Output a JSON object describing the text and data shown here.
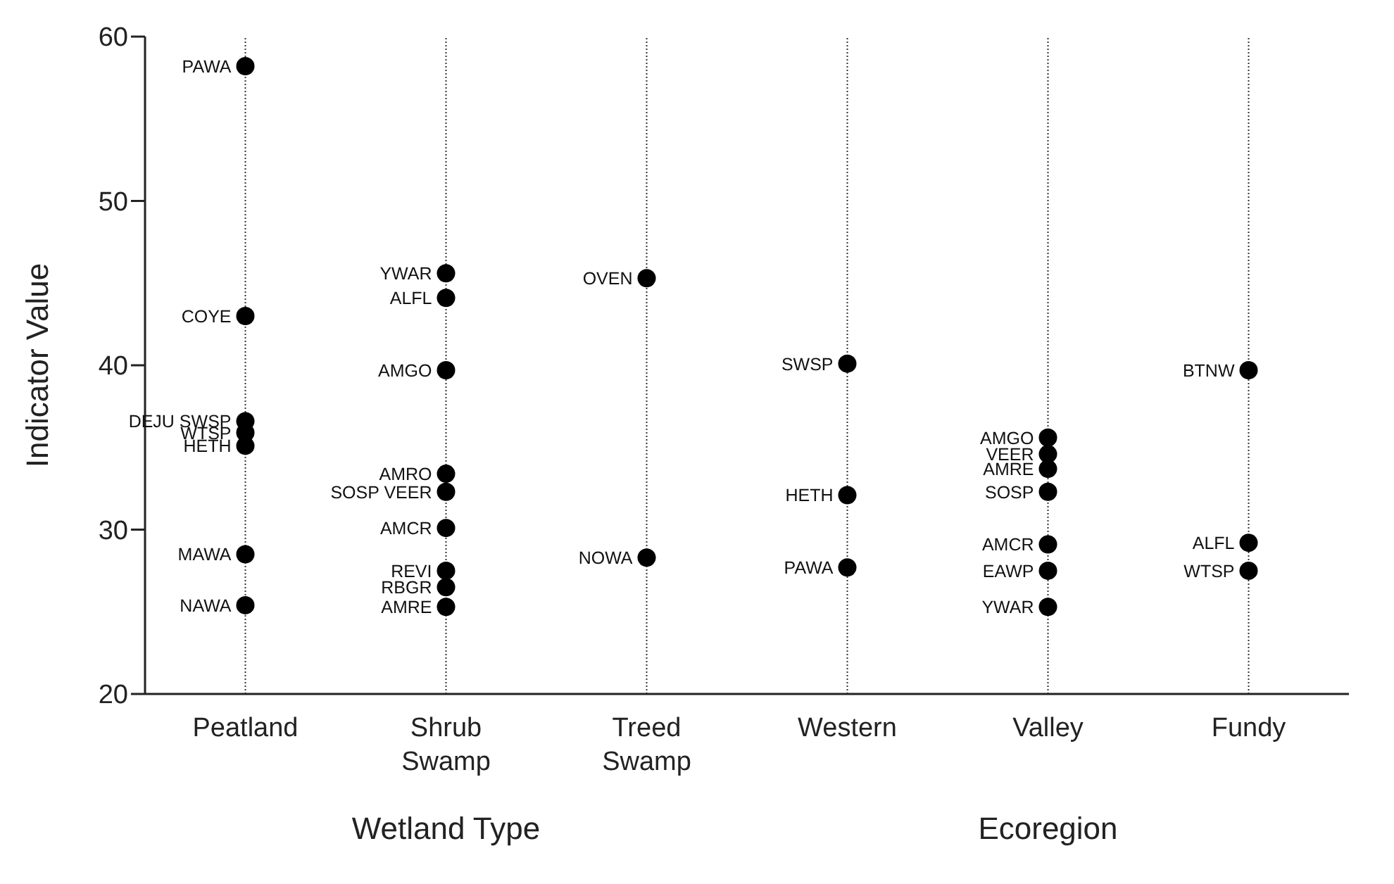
{
  "chart_data": {
    "type": "scatter",
    "ylabel": "Indicator Value",
    "categories": [
      "Peatland",
      "Shrub Swamp",
      "Treed Swamp",
      "Western",
      "Valley",
      "Fundy"
    ],
    "ylim": [
      20,
      60
    ],
    "yticks": [
      20,
      30,
      40,
      50,
      60
    ],
    "grid": "x",
    "marker": "circle",
    "legend": false,
    "series": [
      {
        "color": "#000000",
        "x": [
          "Peatland",
          "Peatland",
          "Peatland",
          "Peatland",
          "Peatland",
          "Peatland",
          "Peatland",
          "Shrub Swamp",
          "Shrub Swamp",
          "Shrub Swamp",
          "Shrub Swamp",
          "Shrub Swamp",
          "Shrub Swamp",
          "Shrub Swamp",
          "Shrub Swamp",
          "Shrub Swamp",
          "Treed Swamp",
          "Treed Swamp",
          "Western",
          "Western",
          "Western",
          "Valley",
          "Valley",
          "Valley",
          "Valley",
          "Valley",
          "Valley",
          "Valley",
          "Fundy",
          "Fundy",
          "Fundy"
        ],
        "values": [
          58.2,
          43.0,
          36.6,
          35.9,
          35.1,
          28.5,
          25.4,
          45.6,
          44.1,
          39.7,
          33.4,
          32.3,
          30.1,
          27.5,
          26.5,
          25.3,
          45.3,
          28.3,
          40.1,
          32.1,
          27.7,
          35.6,
          34.6,
          33.7,
          32.3,
          29.1,
          27.5,
          25.3,
          39.7,
          29.2,
          27.5
        ]
      }
    ],
    "annotations": [
      {
        "text": "PAWA",
        "x": "Peatland",
        "y": 58.2
      },
      {
        "text": "COYE",
        "x": "Peatland",
        "y": 43.0
      },
      {
        "text": "DEJU SWSP",
        "x": "Peatland",
        "y": 36.6
      },
      {
        "text": "WTSP",
        "x": "Peatland",
        "y": 35.9
      },
      {
        "text": "HETH",
        "x": "Peatland",
        "y": 35.1
      },
      {
        "text": "MAWA",
        "x": "Peatland",
        "y": 28.5
      },
      {
        "text": "NAWA",
        "x": "Peatland",
        "y": 25.4
      },
      {
        "text": "YWAR",
        "x": "Shrub Swamp",
        "y": 45.6
      },
      {
        "text": "ALFL",
        "x": "Shrub Swamp",
        "y": 44.1
      },
      {
        "text": "AMGO",
        "x": "Shrub Swamp",
        "y": 39.7
      },
      {
        "text": "AMRO",
        "x": "Shrub Swamp",
        "y": 33.4
      },
      {
        "text": "SOSP VEER",
        "x": "Shrub Swamp",
        "y": 32.3
      },
      {
        "text": "AMCR",
        "x": "Shrub Swamp",
        "y": 30.1
      },
      {
        "text": "REVI",
        "x": "Shrub Swamp",
        "y": 27.5
      },
      {
        "text": "RBGR",
        "x": "Shrub Swamp",
        "y": 26.5
      },
      {
        "text": "AMRE",
        "x": "Shrub Swamp",
        "y": 25.3
      },
      {
        "text": "OVEN",
        "x": "Treed Swamp",
        "y": 45.3
      },
      {
        "text": "NOWA",
        "x": "Treed Swamp",
        "y": 28.3
      },
      {
        "text": "SWSP",
        "x": "Western",
        "y": 40.1
      },
      {
        "text": "HETH",
        "x": "Western",
        "y": 32.1
      },
      {
        "text": "PAWA",
        "x": "Western",
        "y": 27.7
      },
      {
        "text": "AMGO",
        "x": "Valley",
        "y": 35.6
      },
      {
        "text": "VEER",
        "x": "Valley",
        "y": 34.6
      },
      {
        "text": "AMRE",
        "x": "Valley",
        "y": 33.7
      },
      {
        "text": "SOSP",
        "x": "Valley",
        "y": 32.3
      },
      {
        "text": "AMCR",
        "x": "Valley",
        "y": 29.1
      },
      {
        "text": "EAWP",
        "x": "Valley",
        "y": 27.5
      },
      {
        "text": "YWAR",
        "x": "Valley",
        "y": 25.3
      },
      {
        "text": "BTNW",
        "x": "Fundy",
        "y": 39.7
      },
      {
        "text": "ALFL",
        "x": "Fundy",
        "y": 29.2
      },
      {
        "text": "WTSP",
        "x": "Fundy",
        "y": 27.5
      },
      "Wetland Type",
      "Ecoregion"
    ]
  }
}
